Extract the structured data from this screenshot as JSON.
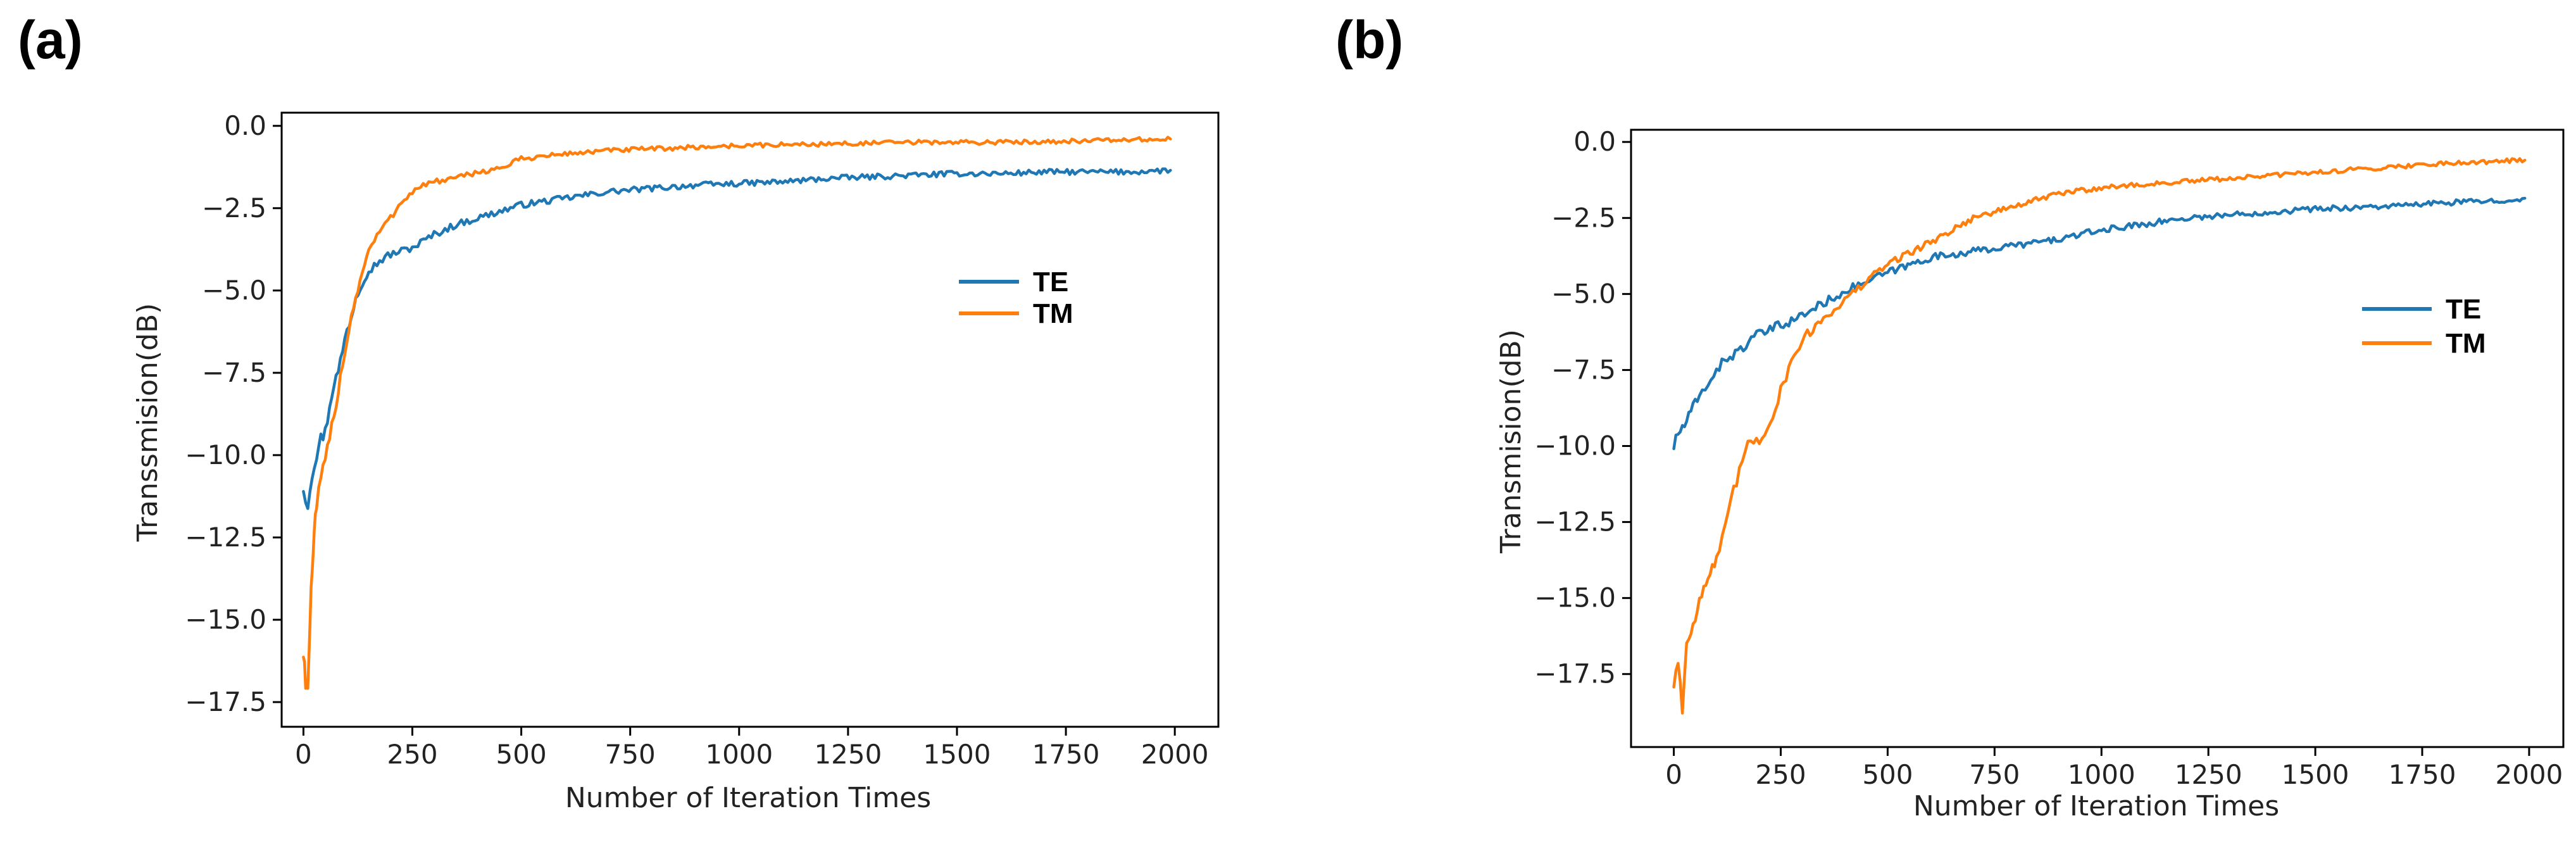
{
  "chart_data": [
    {
      "panel": "(a)",
      "type": "line",
      "title": "",
      "xlabel": "Number of Iteration Times",
      "ylabel": "Transsmision(dB)",
      "xlim": [
        -50,
        2100
      ],
      "ylim": [
        -18.25,
        0.4
      ],
      "xticks": [
        0,
        250,
        500,
        750,
        1000,
        1250,
        1500,
        1750,
        2000
      ],
      "xtick_labels": [
        "0",
        "250",
        "500",
        "750",
        "1000",
        "1250",
        "1500",
        "1750",
        "2000"
      ],
      "yticks": [
        0.0,
        -2.5,
        -5.0,
        -7.5,
        -10.0,
        -12.5,
        -15.0,
        -17.5
      ],
      "ytick_labels": [
        "0.0",
        "−2.5",
        "−5.0",
        "−7.5",
        "−10.0",
        "−12.5",
        "−15.0",
        "−17.5"
      ],
      "legend": "center-right",
      "series": [
        {
          "name": "TE",
          "color": "#1f77b4",
          "x": [
            0,
            10,
            20,
            30,
            40,
            50,
            60,
            70,
            80,
            90,
            100,
            110,
            120,
            130,
            140,
            150,
            175,
            200,
            225,
            250,
            275,
            300,
            350,
            400,
            450,
            500,
            600,
            700,
            800,
            900,
            1000,
            1100,
            1200,
            1300,
            1400,
            1500,
            1600,
            1700,
            1800,
            1900,
            1990
          ],
          "y": [
            -11,
            -11.5,
            -10.5,
            -10,
            -9.5,
            -9.3,
            -8.5,
            -7.8,
            -7.5,
            -6.8,
            -6.2,
            -5.8,
            -5.2,
            -4.9,
            -4.6,
            -4.4,
            -4.1,
            -3.9,
            -3.8,
            -3.7,
            -3.5,
            -3.3,
            -3.0,
            -2.8,
            -2.6,
            -2.4,
            -2.2,
            -2.0,
            -1.9,
            -1.8,
            -1.75,
            -1.7,
            -1.6,
            -1.55,
            -1.5,
            -1.45,
            -1.45,
            -1.4,
            -1.4,
            -1.4,
            -1.35
          ]
        },
        {
          "name": "TM",
          "color": "#ff7f0e",
          "x": [
            0,
            5,
            10,
            15,
            20,
            25,
            30,
            40,
            50,
            60,
            70,
            80,
            90,
            100,
            110,
            120,
            130,
            140,
            150,
            175,
            200,
            225,
            250,
            275,
            300,
            350,
            400,
            450,
            500,
            600,
            700,
            800,
            900,
            1000,
            1200,
            1400,
            1600,
            1800,
            1990
          ],
          "y": [
            -16,
            -16.8,
            -17.2,
            -15,
            -13.5,
            -12.5,
            -11.5,
            -10.8,
            -10.2,
            -9.5,
            -8.8,
            -8,
            -7.2,
            -6.5,
            -5.8,
            -5.2,
            -4.7,
            -4.2,
            -3.8,
            -3.2,
            -2.8,
            -2.3,
            -2.0,
            -1.8,
            -1.7,
            -1.6,
            -1.4,
            -1.3,
            -1.0,
            -0.85,
            -0.75,
            -0.7,
            -0.65,
            -0.6,
            -0.55,
            -0.5,
            -0.5,
            -0.45,
            -0.4
          ]
        }
      ]
    },
    {
      "panel": "(b)",
      "type": "line",
      "title": "",
      "xlabel": "Number of Iteration Times",
      "ylabel": "Transmision(dB)",
      "xlim": [
        -100,
        2080
      ],
      "ylim": [
        -19.9,
        0.4
      ],
      "xticks": [
        0,
        250,
        500,
        750,
        1000,
        1250,
        1500,
        1750,
        2000
      ],
      "xtick_labels": [
        "0",
        "250",
        "500",
        "750",
        "1000",
        "1250",
        "1500",
        "1750",
        "2000"
      ],
      "yticks": [
        0.0,
        -2.5,
        -5.0,
        -7.5,
        -10.0,
        -12.5,
        -15.0,
        -17.5
      ],
      "ytick_labels": [
        "0.0",
        "−2.5",
        "−5.0",
        "−7.5",
        "−10.0",
        "−12.5",
        "−15.0",
        "−17.5"
      ],
      "legend": "center-right",
      "series": [
        {
          "name": "TE",
          "color": "#1f77b4",
          "x": [
            0,
            10,
            20,
            30,
            40,
            50,
            60,
            80,
            100,
            125,
            150,
            175,
            200,
            225,
            250,
            275,
            300,
            350,
            400,
            450,
            500,
            600,
            700,
            800,
            900,
            1000,
            1100,
            1200,
            1300,
            1400,
            1500,
            1600,
            1700,
            1800,
            1900,
            1990
          ],
          "y": [
            -10,
            -9.6,
            -9.4,
            -9.2,
            -8.9,
            -8.6,
            -8.4,
            -7.9,
            -7.5,
            -7.1,
            -6.9,
            -6.6,
            -6.3,
            -6.2,
            -6.0,
            -5.9,
            -5.7,
            -5.3,
            -4.9,
            -4.6,
            -4.3,
            -3.8,
            -3.6,
            -3.4,
            -3.2,
            -2.9,
            -2.7,
            -2.5,
            -2.4,
            -2.3,
            -2.2,
            -2.15,
            -2.1,
            -2.0,
            -1.95,
            -1.85
          ]
        },
        {
          "name": "TM",
          "color": "#ff7f0e",
          "x": [
            0,
            10,
            20,
            30,
            40,
            50,
            60,
            70,
            80,
            90,
            100,
            120,
            140,
            160,
            180,
            200,
            225,
            250,
            275,
            300,
            350,
            400,
            450,
            500,
            600,
            700,
            800,
            900,
            1000,
            1100,
            1200,
            1300,
            1400,
            1500,
            1600,
            1700,
            1800,
            1900,
            1990
          ],
          "y": [
            -17.8,
            -17.0,
            -18.7,
            -16.5,
            -16.0,
            -15.5,
            -15.0,
            -14.8,
            -14.3,
            -14.0,
            -13.8,
            -12.8,
            -11.5,
            -10.5,
            -9.8,
            -9.8,
            -9.2,
            -8.2,
            -7.2,
            -6.5,
            -5.8,
            -5.2,
            -4.6,
            -4.0,
            -3.3,
            -2.5,
            -2.1,
            -1.7,
            -1.5,
            -1.4,
            -1.3,
            -1.2,
            -1.1,
            -1.0,
            -0.9,
            -0.8,
            -0.7,
            -0.65,
            -0.6
          ]
        }
      ]
    }
  ]
}
